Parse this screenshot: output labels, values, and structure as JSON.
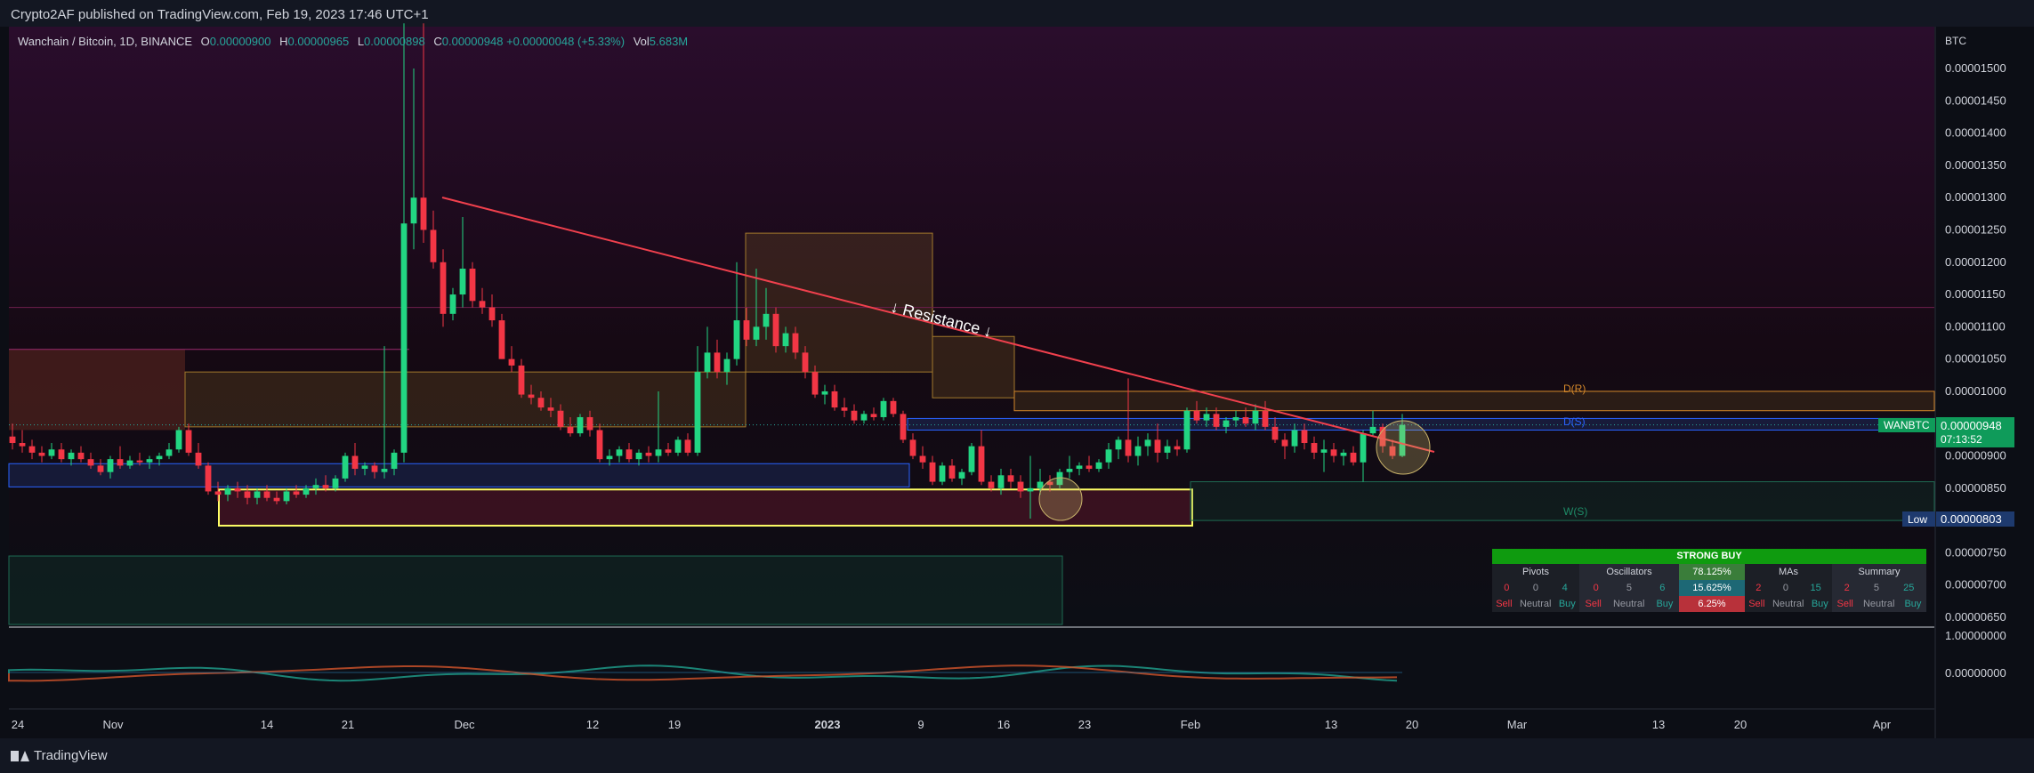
{
  "publish_text": "Crypto2AF published on TradingView.com, Feb 19, 2023 17:46 UTC+1",
  "footer_brand": "TradingView",
  "legend": {
    "symbol": "Wanchain / Bitcoin, 1D, BINANCE",
    "o_label": "O",
    "o": "0.00000900",
    "h_label": "H",
    "h": "0.00000965",
    "l_label": "L",
    "l": "0.00000898",
    "c_label": "C",
    "c": "0.00000948",
    "chg": "+0.00000048 (+5.33%)",
    "vol_label": "Vol",
    "vol": "5.683M"
  },
  "colors": {
    "up": "#26a69a",
    "up_bright": "#22d582",
    "down": "#f23645",
    "accent_line": "#f0404d",
    "box_yellow": "#ffff66",
    "fib": "#d4882a"
  },
  "chart_data": {
    "type": "candlestick",
    "title": "Wanchain / Bitcoin, 1D, BINANCE",
    "currency_label": "BTC",
    "y_ticks": [
      "0.00001500",
      "0.00001450",
      "0.00001400",
      "0.00001350",
      "0.00001300",
      "0.00001250",
      "0.00001200",
      "0.00001150",
      "0.00001100",
      "0.00001050",
      "0.00001000",
      "0.00000950",
      "0.00000900",
      "0.00000850",
      "0.00000800",
      "0.00000750",
      "0.00000700",
      "0.00000650"
    ],
    "ylim": [
      6.3e-06,
      1.54e-05
    ],
    "x_ticks": [
      "24",
      "Nov",
      "14",
      "21",
      "Dec",
      "12",
      "19",
      "2023",
      "9",
      "16",
      "23",
      "Feb",
      "13",
      "20",
      "Mar",
      "13",
      "20",
      "Apr"
    ],
    "last_price": "0.00000948",
    "countdown": "07:13:52",
    "symbol_tag": "WANBTC",
    "low_label": "Low",
    "low_value": "0.00000803",
    "oscillator_ticks": [
      "1.00000000",
      "0.00000000"
    ],
    "annotations": {
      "resistance": "↓ Resistance ↓",
      "dr": "D(R)",
      "ds": "D(S)",
      "ws": "W(S)"
    },
    "candles": [
      [
        9.3e-06,
        9.5e-06,
        9.1e-06,
        9.2e-06
      ],
      [
        9.2e-06,
        9.4e-06,
        9.05e-06,
        9.15e-06
      ],
      [
        9.15e-06,
        9.25e-06,
        8.95e-06,
        9.05e-06
      ],
      [
        9.05e-06,
        9.15e-06,
        8.9e-06,
        9e-06
      ],
      [
        9e-06,
        9.2e-06,
        8.95e-06,
        9.1e-06
      ],
      [
        9.1e-06,
        9.2e-06,
        8.9e-06,
        8.95e-06
      ],
      [
        8.95e-06,
        9.1e-06,
        8.85e-06,
        9.05e-06
      ],
      [
        9.05e-06,
        9.15e-06,
        8.9e-06,
        8.95e-06
      ],
      [
        8.95e-06,
        9.05e-06,
        8.8e-06,
        8.85e-06
      ],
      [
        8.85e-06,
        8.95e-06,
        8.7e-06,
        8.75e-06
      ],
      [
        8.75e-06,
        9e-06,
        8.65e-06,
        8.95e-06
      ],
      [
        8.95e-06,
        9.15e-06,
        8.8e-06,
        8.85e-06
      ],
      [
        8.85e-06,
        9e-06,
        8.8e-06,
        8.93e-06
      ],
      [
        8.93e-06,
        9.05e-06,
        8.85e-06,
        8.9e-06
      ],
      [
        8.9e-06,
        9e-06,
        8.8e-06,
        8.95e-06
      ],
      [
        8.95e-06,
        9.05e-06,
        8.85e-06,
        9e-06
      ],
      [
        9e-06,
        9.2e-06,
        8.95e-06,
        9.1e-06
      ],
      [
        9.1e-06,
        9.45e-06,
        9.05e-06,
        9.4e-06
      ],
      [
        9.4e-06,
        9.5e-06,
        9e-06,
        9.05e-06
      ],
      [
        9.05e-06,
        9.2e-06,
        8.8e-06,
        8.85e-06
      ],
      [
        8.85e-06,
        8.9e-06,
        8.4e-06,
        8.45e-06
      ],
      [
        8.45e-06,
        8.6e-06,
        8.3e-06,
        8.4e-06
      ],
      [
        8.4e-06,
        8.55e-06,
        8.3e-06,
        8.5e-06
      ],
      [
        8.5e-06,
        8.6e-06,
        8.35e-06,
        8.45e-06
      ],
      [
        8.45e-06,
        8.55e-06,
        8.25e-06,
        8.35e-06
      ],
      [
        8.35e-06,
        8.5e-06,
        8.25e-06,
        8.45e-06
      ],
      [
        8.45e-06,
        8.55e-06,
        8.3e-06,
        8.35e-06
      ],
      [
        8.35e-06,
        8.45e-06,
        8.25e-06,
        8.3e-06
      ],
      [
        8.3e-06,
        8.5e-06,
        8.25e-06,
        8.45e-06
      ],
      [
        8.45e-06,
        8.55e-06,
        8.35e-06,
        8.4e-06
      ],
      [
        8.4e-06,
        8.55e-06,
        8.35e-06,
        8.5e-06
      ],
      [
        8.5e-06,
        8.65e-06,
        8.4e-06,
        8.55e-06
      ],
      [
        8.55e-06,
        8.7e-06,
        8.45e-06,
        8.5e-06
      ],
      [
        8.5e-06,
        8.7e-06,
        8.45e-06,
        8.65e-06
      ],
      [
        8.65e-06,
        9.05e-06,
        8.6e-06,
        9e-06
      ],
      [
        9e-06,
        9.2e-06,
        8.7e-06,
        8.8e-06
      ],
      [
        8.8e-06,
        8.9e-06,
        8.7e-06,
        8.85e-06
      ],
      [
        8.85e-06,
        8.9e-06,
        8.65e-06,
        8.75e-06
      ],
      [
        8.75e-06,
        1.07e-05,
        8.65e-06,
        8.8e-06
      ],
      [
        8.8e-06,
        9.1e-06,
        8.7e-06,
        9.05e-06
      ],
      [
        9.05e-06,
        1.57e-05,
        8.9e-06,
        1.26e-05
      ],
      [
        1.26e-05,
        1.5e-05,
        1.22e-05,
        1.3e-05
      ],
      [
        1.3e-05,
        1.57e-05,
        1.23e-05,
        1.25e-05
      ],
      [
        1.25e-05,
        1.28e-05,
        1.19e-05,
        1.2e-05
      ],
      [
        1.2e-05,
        1.22e-05,
        1.1e-05,
        1.12e-05
      ],
      [
        1.12e-05,
        1.16e-05,
        1.11e-05,
        1.15e-05
      ],
      [
        1.15e-05,
        1.27e-05,
        1.13e-05,
        1.19e-05
      ],
      [
        1.19e-05,
        1.2e-05,
        1.13e-05,
        1.14e-05
      ],
      [
        1.14e-05,
        1.16e-05,
        1.12e-05,
        1.13e-05
      ],
      [
        1.13e-05,
        1.15e-05,
        1.1e-05,
        1.11e-05
      ],
      [
        1.11e-05,
        1.12e-05,
        1.05e-05,
        1.05e-05
      ],
      [
        1.05e-05,
        1.07e-05,
        1.03e-05,
        1.04e-05
      ],
      [
        1.04e-05,
        1.05e-05,
        9.9e-06,
        9.95e-06
      ],
      [
        9.95e-06,
        1.01e-05,
        9.8e-06,
        9.9e-06
      ],
      [
        9.9e-06,
        1e-05,
        9.7e-06,
        9.75e-06
      ],
      [
        9.75e-06,
        9.9e-06,
        9.6e-06,
        9.7e-06
      ],
      [
        9.7e-06,
        9.8e-06,
        9.4e-06,
        9.45e-06
      ],
      [
        9.45e-06,
        9.6e-06,
        9.3e-06,
        9.35e-06
      ],
      [
        9.35e-06,
        9.65e-06,
        9.3e-06,
        9.6e-06
      ],
      [
        9.6e-06,
        9.7e-06,
        9.3e-06,
        9.4e-06
      ],
      [
        9.4e-06,
        9.5e-06,
        8.9e-06,
        8.95e-06
      ],
      [
        8.95e-06,
        9.1e-06,
        8.85e-06,
        9e-06
      ],
      [
        9e-06,
        9.15e-06,
        8.9e-06,
        9.1e-06
      ],
      [
        9.1e-06,
        9.2e-06,
        8.9e-06,
        8.95e-06
      ],
      [
        8.95e-06,
        9.1e-06,
        8.85e-06,
        9.05e-06
      ],
      [
        9.05e-06,
        9.15e-06,
        8.9e-06,
        9e-06
      ],
      [
        9e-06,
        1e-05,
        8.9e-06,
        9.1e-06
      ],
      [
        9.1e-06,
        9.2e-06,
        9e-06,
        9.05e-06
      ],
      [
        9.05e-06,
        9.3e-06,
        9e-06,
        9.25e-06
      ],
      [
        9.25e-06,
        9.35e-06,
        9e-06,
        9.05e-06
      ],
      [
        9.05e-06,
        1.07e-05,
        9e-06,
        1.03e-05
      ],
      [
        1.03e-05,
        1.1e-05,
        1.02e-05,
        1.06e-05
      ],
      [
        1.06e-05,
        1.08e-05,
        1.02e-05,
        1.03e-05
      ],
      [
        1.03e-05,
        1.06e-05,
        1.01e-05,
        1.05e-05
      ],
      [
        1.05e-05,
        1.2e-05,
        1.04e-05,
        1.11e-05
      ],
      [
        1.11e-05,
        1.13e-05,
        1.07e-05,
        1.08e-05
      ],
      [
        1.08e-05,
        1.19e-05,
        1.07e-05,
        1.1e-05
      ],
      [
        1.1e-05,
        1.16e-05,
        1.08e-05,
        1.12e-05
      ],
      [
        1.12e-05,
        1.13e-05,
        1.06e-05,
        1.07e-05
      ],
      [
        1.07e-05,
        1.1e-05,
        1.06e-05,
        1.09e-05
      ],
      [
        1.09e-05,
        1.1e-05,
        1.05e-05,
        1.06e-05
      ],
      [
        1.06e-05,
        1.07e-05,
        1.02e-05,
        1.03e-05
      ],
      [
        1.03e-05,
        1.04e-05,
        9.9e-06,
        9.95e-06
      ],
      [
        9.95e-06,
        1.01e-05,
        9.8e-06,
        1e-05
      ],
      [
        1e-05,
        1.01e-05,
        9.7e-06,
        9.75e-06
      ],
      [
        9.75e-06,
        9.9e-06,
        9.6e-06,
        9.7e-06
      ],
      [
        9.7e-06,
        9.8e-06,
        9.5e-06,
        9.55e-06
      ],
      [
        9.55e-06,
        9.7e-06,
        9.5e-06,
        9.65e-06
      ],
      [
        9.65e-06,
        9.75e-06,
        9.55e-06,
        9.6e-06
      ],
      [
        9.6e-06,
        9.9e-06,
        9.55e-06,
        9.85e-06
      ],
      [
        9.85e-06,
        9.9e-06,
        9.6e-06,
        9.65e-06
      ],
      [
        9.65e-06,
        9.7e-06,
        9.2e-06,
        9.25e-06
      ],
      [
        9.25e-06,
        9.35e-06,
        8.95e-06,
        9e-06
      ],
      [
        9e-06,
        9.15e-06,
        8.8e-06,
        8.9e-06
      ],
      [
        8.9e-06,
        9e-06,
        8.55e-06,
        8.6e-06
      ],
      [
        8.6e-06,
        8.9e-06,
        8.55e-06,
        8.85e-06
      ],
      [
        8.85e-06,
        8.95e-06,
        8.6e-06,
        8.65e-06
      ],
      [
        8.65e-06,
        8.8e-06,
        8.55e-06,
        8.75e-06
      ],
      [
        8.75e-06,
        9.2e-06,
        8.7e-06,
        9.15e-06
      ],
      [
        9.15e-06,
        9.4e-06,
        8.55e-06,
        8.6e-06
      ],
      [
        8.6e-06,
        8.7e-06,
        8.45e-06,
        8.5e-06
      ],
      [
        8.5e-06,
        8.8e-06,
        8.4e-06,
        8.7e-06
      ],
      [
        8.7e-06,
        8.8e-06,
        8.5e-06,
        8.6e-06
      ],
      [
        8.6e-06,
        8.7e-06,
        8.35e-06,
        8.45e-06
      ],
      [
        8.45e-06,
        9e-06,
        8.03e-06,
        8.5e-06
      ],
      [
        8.5e-06,
        8.8e-06,
        8.4e-06,
        8.6e-06
      ],
      [
        8.6e-06,
        8.7e-06,
        8.45e-06,
        8.55e-06
      ],
      [
        8.55e-06,
        8.8e-06,
        8.5e-06,
        8.75e-06
      ],
      [
        8.75e-06,
        9e-06,
        8.65e-06,
        8.8e-06
      ],
      [
        8.8e-06,
        8.9e-06,
        8.7e-06,
        8.85e-06
      ],
      [
        8.85e-06,
        9e-06,
        8.75e-06,
        8.8e-06
      ],
      [
        8.8e-06,
        8.95e-06,
        8.75e-06,
        8.9e-06
      ],
      [
        8.9e-06,
        9.2e-06,
        8.8e-06,
        9.1e-06
      ],
      [
        9.1e-06,
        9.3e-06,
        8.95e-06,
        9.25e-06
      ],
      [
        9.25e-06,
        1.02e-05,
        8.9e-06,
        9e-06
      ],
      [
        9e-06,
        9.3e-06,
        8.85e-06,
        9.15e-06
      ],
      [
        9.15e-06,
        9.35e-06,
        9e-06,
        9.25e-06
      ],
      [
        9.25e-06,
        9.5e-06,
        8.9e-06,
        9.05e-06
      ],
      [
        9.05e-06,
        9.25e-06,
        8.95e-06,
        9.15e-06
      ],
      [
        9.15e-06,
        9.25e-06,
        9e-06,
        9.1e-06
      ],
      [
        9.1e-06,
        9.75e-06,
        9.05e-06,
        9.7e-06
      ],
      [
        9.7e-06,
        9.85e-06,
        9.5e-06,
        9.55e-06
      ],
      [
        9.55e-06,
        9.75e-06,
        9.45e-06,
        9.65e-06
      ],
      [
        9.65e-06,
        9.75e-06,
        9.4e-06,
        9.45e-06
      ],
      [
        9.45e-06,
        9.6e-06,
        9.35e-06,
        9.55e-06
      ],
      [
        9.55e-06,
        9.7e-06,
        9.45e-06,
        9.6e-06
      ],
      [
        9.6e-06,
        9.75e-06,
        9.45e-06,
        9.5e-06
      ],
      [
        9.5e-06,
        9.8e-06,
        9.4e-06,
        9.7e-06
      ],
      [
        9.7e-06,
        9.85e-06,
        9.4e-06,
        9.45e-06
      ],
      [
        9.45e-06,
        9.6e-06,
        9.2e-06,
        9.25e-06
      ],
      [
        9.25e-06,
        9.35e-06,
        8.95e-06,
        9.15e-06
      ],
      [
        9.15e-06,
        9.5e-06,
        9.05e-06,
        9.4e-06
      ],
      [
        9.4e-06,
        9.5e-06,
        9.1e-06,
        9.2e-06
      ],
      [
        9.2e-06,
        9.3e-06,
        8.95e-06,
        9.05e-06
      ],
      [
        9.05e-06,
        9.25e-06,
        8.75e-06,
        9.1e-06
      ],
      [
        9.1e-06,
        9.2e-06,
        8.9e-06,
        9e-06
      ],
      [
        9e-06,
        9.1e-06,
        8.85e-06,
        9.05e-06
      ],
      [
        9.05e-06,
        9.15e-06,
        8.85e-06,
        8.9e-06
      ],
      [
        8.9e-06,
        9.4e-06,
        8.6e-06,
        9.35e-06
      ],
      [
        9.35e-06,
        9.7e-06,
        9.3e-06,
        9.45e-06
      ],
      [
        9.45e-06,
        9.5e-06,
        9.05e-06,
        9.15e-06
      ],
      [
        9.15e-06,
        9.25e-06,
        8.95e-06,
        9e-06
      ],
      [
        9e-06,
        9.65e-06,
        8.98e-06,
        9.48e-06
      ]
    ]
  },
  "ta_table": {
    "title": "STRONG BUY",
    "groups": [
      {
        "name": "Pivots",
        "vals": [
          "0",
          "0",
          "4"
        ],
        "labels": [
          "Sell",
          "Neutral",
          "Buy"
        ]
      },
      {
        "name": "Oscillators",
        "vals": [
          "0",
          "5",
          "6"
        ],
        "labels": [
          "Sell",
          "Neutral",
          "Buy"
        ]
      },
      {
        "name": "MAs",
        "vals": [
          "2",
          "0",
          "15"
        ],
        "labels": [
          "Sell",
          "Neutral",
          "Buy"
        ]
      },
      {
        "name": "Summary",
        "vals": [
          "2",
          "5",
          "25"
        ],
        "labels": [
          "Sell",
          "Neutral",
          "Buy"
        ]
      }
    ],
    "pcts": [
      "78.125%",
      "15.625%",
      "6.25%"
    ]
  }
}
